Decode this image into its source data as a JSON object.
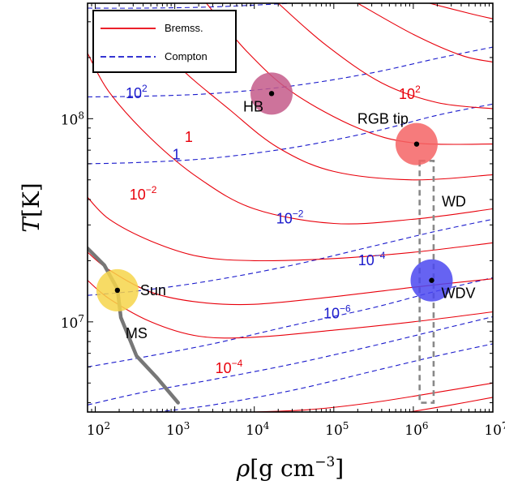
{
  "chart_data": {
    "type": "line",
    "xlabel_symbol": "ρ",
    "xlabel_unit": "[g cm",
    "xlabel_exp": "−3",
    "xlabel_close": "]",
    "ylabel_symbol": "T",
    "ylabel_unit": "[K]",
    "x_scale": "log",
    "y_scale": "log",
    "xlim": [
      80,
      10000000
    ],
    "ylim": [
      3600000,
      370000000
    ],
    "x_ticks": [
      {
        "value": 100,
        "base": "10",
        "exp": "2"
      },
      {
        "value": 1000,
        "base": "10",
        "exp": "3"
      },
      {
        "value": 10000,
        "base": "10",
        "exp": "4"
      },
      {
        "value": 100000,
        "base": "10",
        "exp": "5"
      },
      {
        "value": 1000000,
        "base": "10",
        "exp": "6"
      },
      {
        "value": 10000000,
        "base": "10",
        "exp": "7"
      }
    ],
    "y_ticks": [
      {
        "value": 10000000,
        "base": "10",
        "exp": "7"
      },
      {
        "value": 100000000,
        "base": "10",
        "exp": "8"
      }
    ],
    "legend": {
      "position": "top-left",
      "entries": [
        {
          "label": "Bremss.",
          "color": "#e8000b",
          "dash": "solid"
        },
        {
          "label": "Compton",
          "color": "#1a1acc",
          "dash": "dashed"
        }
      ]
    },
    "bremss_curves": [
      {
        "points": [
          [
            80,
            16000000
          ],
          [
            150,
            13000000
          ],
          [
            500,
            10000000
          ],
          [
            2000,
            8500000
          ],
          [
            10000,
            8400000
          ],
          [
            100000,
            9100000
          ],
          [
            1000000,
            10000000
          ],
          [
            10000000,
            11200000
          ]
        ]
      },
      {
        "points": [
          [
            80,
            22000000
          ],
          [
            150,
            18000000
          ],
          [
            500,
            14000000
          ],
          [
            2000,
            12500000
          ],
          [
            10000,
            12200000
          ],
          [
            100000,
            13300000
          ],
          [
            1000000,
            14800000
          ],
          [
            10000000,
            16300000
          ]
        ]
      },
      {
        "points": [
          [
            80,
            41000000
          ],
          [
            150,
            32000000
          ],
          [
            500,
            25000000
          ],
          [
            2000,
            21000000
          ],
          [
            10000,
            20000000
          ],
          [
            100000,
            20500000
          ],
          [
            1000000,
            22000000
          ],
          [
            10000000,
            24500000
          ]
        ]
      },
      {
        "points": [
          [
            80,
            210000000
          ],
          [
            150,
            135000000
          ],
          [
            500,
            80000000
          ],
          [
            2000,
            51000000
          ],
          [
            10000,
            36000000
          ],
          [
            100000,
            30500000
          ],
          [
            1000000,
            32000000
          ],
          [
            10000000,
            36000000
          ]
        ]
      },
      {
        "points": [
          [
            500,
            300000000
          ],
          [
            1000,
            190000000
          ],
          [
            5000,
            110000000
          ],
          [
            20000,
            72000000
          ],
          [
            100000,
            55000000
          ],
          [
            1000000,
            50000000
          ],
          [
            10000000,
            53000000
          ]
        ]
      },
      {
        "points": [
          [
            2500,
            370000000
          ],
          [
            8000,
            215000000
          ],
          [
            30000,
            135000000
          ],
          [
            200000,
            90000000
          ],
          [
            1000000,
            76000000
          ],
          [
            10000000,
            75000000
          ]
        ]
      },
      {
        "points": [
          [
            20000,
            370000000
          ],
          [
            80000,
            230000000
          ],
          [
            400000,
            150000000
          ],
          [
            2000000,
            120000000
          ],
          [
            10000000,
            112000000
          ]
        ]
      },
      {
        "points": [
          [
            200000,
            370000000
          ],
          [
            1000000,
            260000000
          ],
          [
            4000000,
            205000000
          ],
          [
            10000000,
            190000000
          ]
        ]
      },
      {
        "points": [
          [
            1600000,
            370000000
          ],
          [
            5000000,
            330000000
          ],
          [
            10000000,
            310000000
          ]
        ]
      },
      {
        "points": [
          [
            10000,
            3600000
          ],
          [
            50000,
            3700000
          ],
          [
            300000,
            4000000
          ],
          [
            2000000,
            4500000
          ],
          [
            10000000,
            5000000
          ]
        ]
      },
      {
        "points": [
          [
            900000,
            3600000
          ],
          [
            3000000,
            3900000
          ],
          [
            10000000,
            4250000
          ]
        ]
      }
    ],
    "compton_curves": [
      {
        "points": [
          [
            80,
            3900000
          ],
          [
            400,
            4500000
          ],
          [
            3000,
            5200000
          ],
          [
            30000,
            6200000
          ],
          [
            300000,
            7600000
          ],
          [
            2000000,
            9100000
          ],
          [
            10000000,
            10600000
          ]
        ]
      },
      {
        "points": [
          [
            80,
            6000000
          ],
          [
            400,
            6700000
          ],
          [
            3000,
            7800000
          ],
          [
            30000,
            9600000
          ],
          [
            300000,
            11700000
          ],
          [
            2000000,
            14200000
          ],
          [
            10000000,
            16500000
          ]
        ]
      },
      {
        "points": [
          [
            80,
            13500000
          ],
          [
            400,
            14300000
          ],
          [
            3000,
            16000000
          ],
          [
            30000,
            19000000
          ],
          [
            300000,
            23500000
          ],
          [
            2000000,
            28000000
          ],
          [
            10000000,
            32000000
          ]
        ]
      },
      {
        "points": [
          [
            80,
            60000000
          ],
          [
            400,
            61000000
          ],
          [
            3000,
            64000000
          ],
          [
            30000,
            72000000
          ],
          [
            300000,
            86000000
          ],
          [
            2000000,
            104000000
          ],
          [
            10000000,
            118000000
          ]
        ]
      },
      {
        "points": [
          [
            80,
            128000000
          ],
          [
            400,
            129000000
          ],
          [
            3000,
            133000000
          ],
          [
            30000,
            145000000
          ],
          [
            300000,
            168000000
          ],
          [
            2000000,
            198000000
          ],
          [
            10000000,
            225000000
          ]
        ]
      },
      {
        "points": [
          [
            80,
            350000000
          ],
          [
            400,
            350000000
          ],
          [
            3000,
            355000000
          ],
          [
            30000,
            370000000
          ]
        ]
      },
      {
        "points": [
          [
            600,
            3600000
          ],
          [
            3000,
            3900000
          ],
          [
            30000,
            4600000
          ],
          [
            300000,
            5700000
          ],
          [
            2000000,
            6800000
          ],
          [
            10000000,
            7800000
          ]
        ]
      }
    ],
    "bremss_labels": [
      {
        "base": "10",
        "exp": "2",
        "x": 900000,
        "y": 125000000
      },
      {
        "base": "1",
        "exp": "",
        "x": 1500,
        "y": 77000000
      },
      {
        "base": "10",
        "exp": "−2",
        "x": 400,
        "y": 40000000
      },
      {
        "base": "10",
        "exp": "−4",
        "x": 4800,
        "y": 5600000
      }
    ],
    "compton_labels": [
      {
        "base": "10",
        "exp": "2",
        "x": 330,
        "y": 126000000
      },
      {
        "base": "1",
        "exp": "",
        "x": 1050,
        "y": 63000000
      },
      {
        "base": "10",
        "exp": "−2",
        "x": 28000,
        "y": 30500000
      },
      {
        "base": "10",
        "exp": "−4",
        "x": 300000,
        "y": 19000000
      },
      {
        "base": "10",
        "exp": "−6",
        "x": 110000,
        "y": 10400000
      }
    ],
    "main_sequence": {
      "label": "MS",
      "points": [
        [
          80,
          23000000
        ],
        [
          130,
          19000000
        ],
        [
          190,
          14500000
        ],
        [
          210,
          10500000
        ],
        [
          330,
          6800000
        ],
        [
          600,
          5300000
        ],
        [
          1100,
          4000000
        ]
      ]
    },
    "wd_region": {
      "label": "WD",
      "x": [
        1200000,
        1800000
      ],
      "y": [
        4000000,
        62000000
      ]
    },
    "stars": [
      {
        "label": "Sun",
        "x": 190,
        "y": 14300000,
        "color": "#f6d54a"
      },
      {
        "label": "HB",
        "x": 16500,
        "y": 133000000,
        "color": "#c45a8a"
      },
      {
        "label": "RGB tip",
        "x": 1100000,
        "y": 75000000,
        "color": "#f46465"
      },
      {
        "label": "WDV",
        "x": 1700000,
        "y": 16000000,
        "color": "#4b48f0"
      }
    ]
  }
}
